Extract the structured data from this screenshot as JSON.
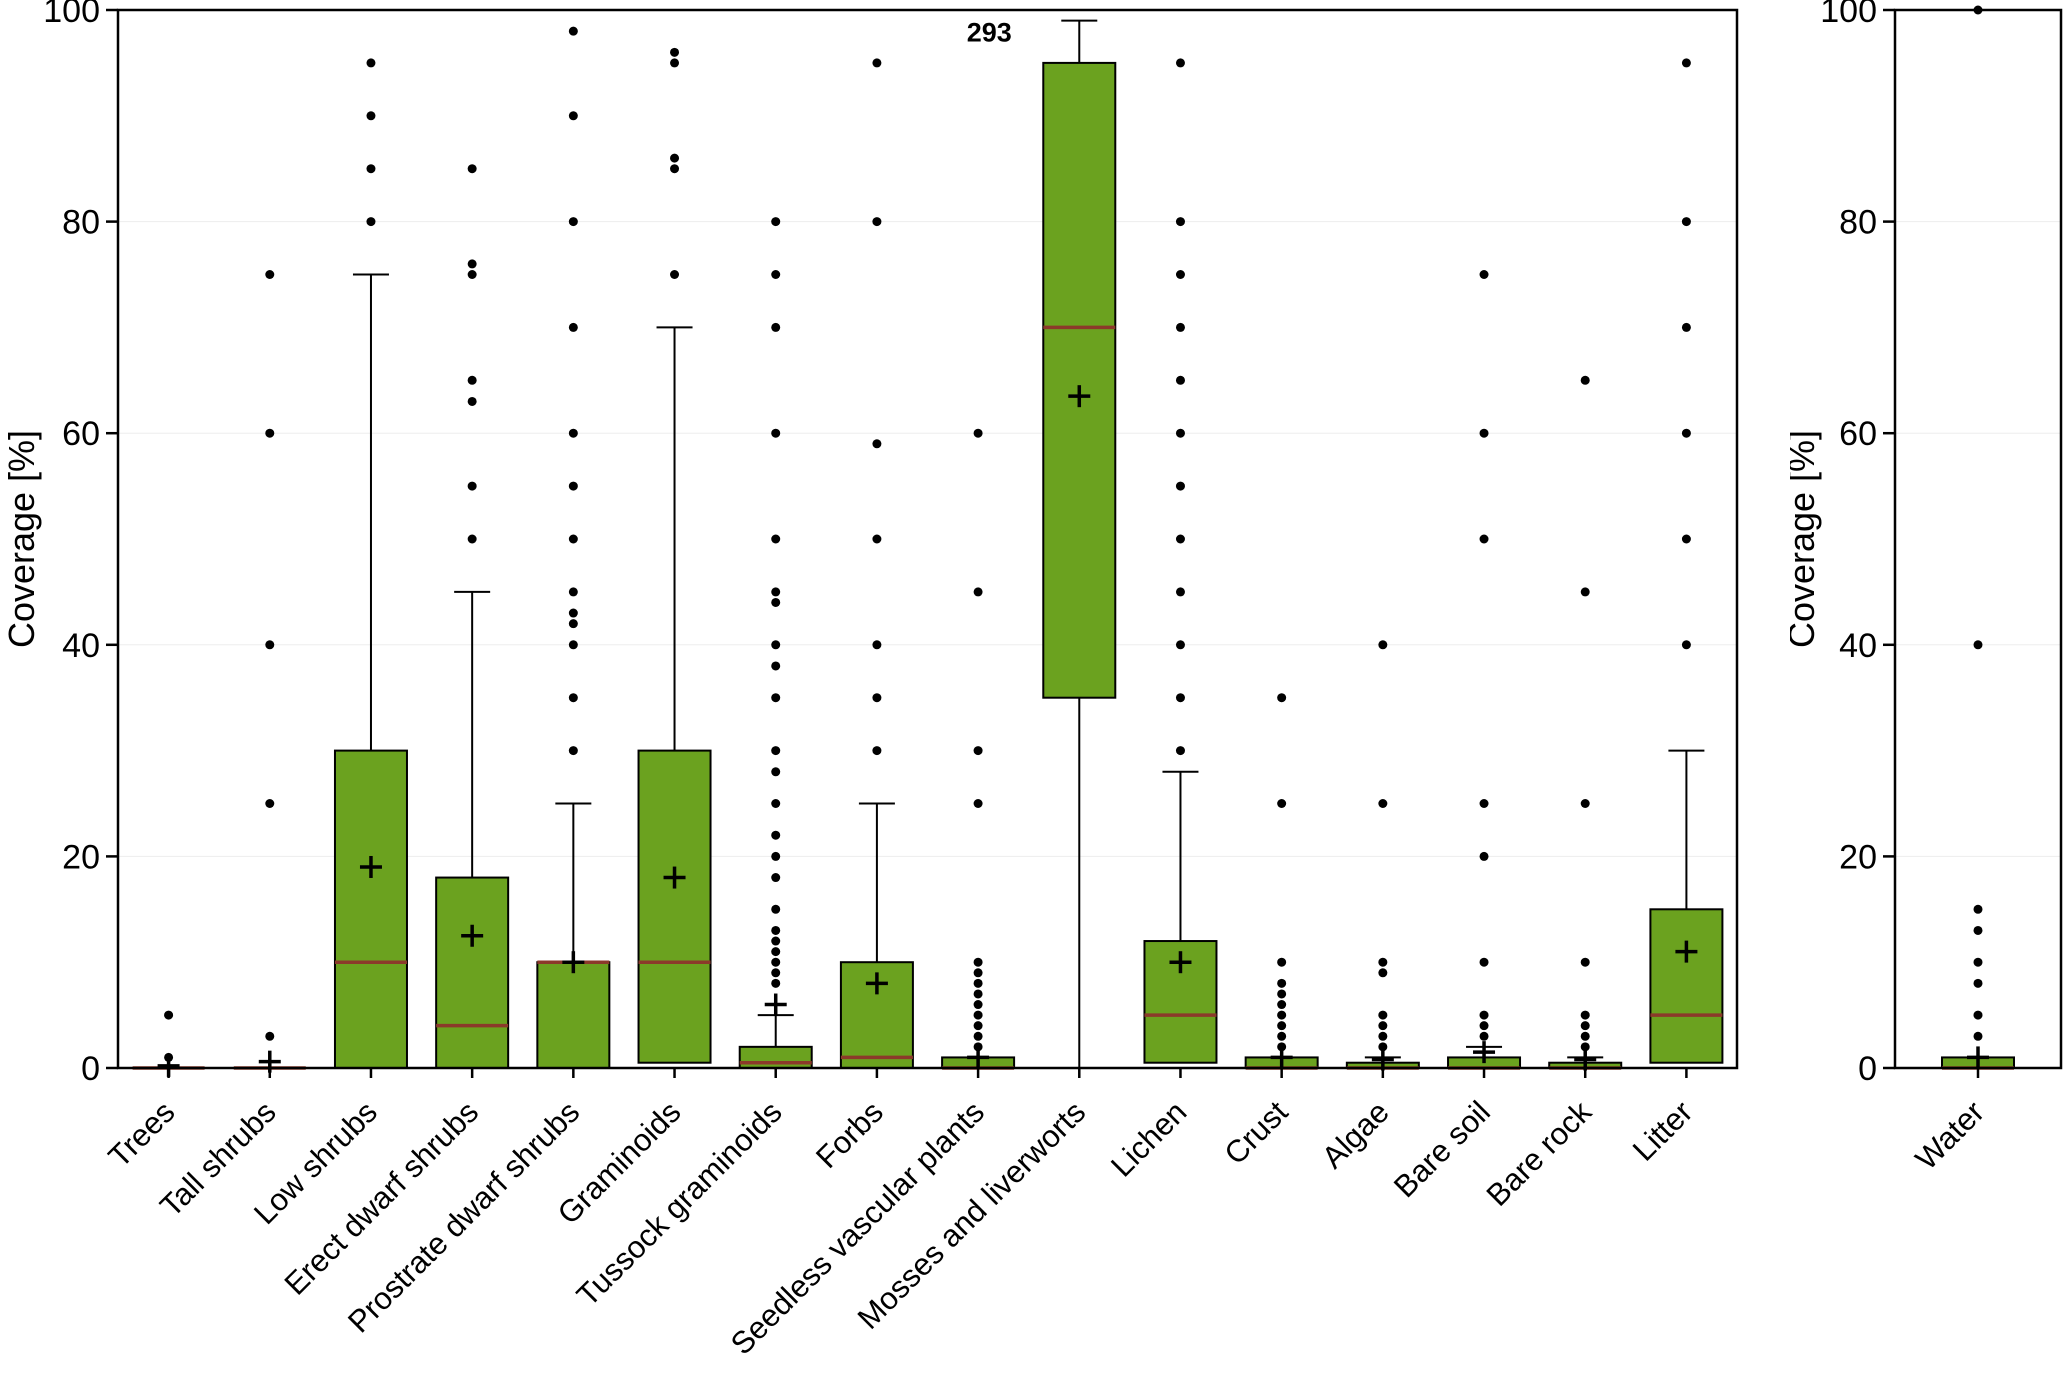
{
  "styles": {
    "background": "#ffffff",
    "box_fill": "#6ba21f",
    "box_stroke": "#000000",
    "median_color": "#8b3a2a",
    "whisker_color": "#000000",
    "outlier_color": "#000000",
    "grid_color": "#ededed",
    "mean_marker": "plus"
  },
  "chart_data": [
    {
      "type": "boxplot",
      "panel": "left",
      "title": "",
      "xlabel": "",
      "ylabel": "Coverage [%]",
      "ylim": [
        0,
        100
      ],
      "yticks": [
        0,
        20,
        40,
        60,
        80,
        100
      ],
      "grid": false,
      "annotation": {
        "text": "293",
        "category": "Mosses and liverworts",
        "y": 97
      },
      "series": [
        {
          "category": "Trees",
          "q1": 0,
          "median": 0,
          "q3": 0,
          "whisker_low": 0,
          "whisker_high": 0,
          "mean": 0.2,
          "outliers": [
            1,
            5
          ]
        },
        {
          "category": "Tall shrubs",
          "q1": 0,
          "median": 0,
          "q3": 0,
          "whisker_low": 0,
          "whisker_high": 0,
          "mean": 0.6,
          "outliers": [
            3,
            25,
            40,
            60,
            75
          ]
        },
        {
          "category": "Low shrubs",
          "q1": 0,
          "median": 10,
          "q3": 30,
          "whisker_low": 0,
          "whisker_high": 75,
          "mean": 19,
          "outliers": [
            80,
            85,
            90,
            95
          ]
        },
        {
          "category": "Erect dwarf shrubs",
          "q1": 0,
          "median": 4,
          "q3": 18,
          "whisker_low": 0,
          "whisker_high": 45,
          "mean": 12.5,
          "outliers": [
            50,
            55,
            63,
            65,
            75,
            76,
            85
          ]
        },
        {
          "category": "Prostrate dwarf shrubs",
          "q1": 0,
          "median": 10,
          "q3": 10,
          "whisker_low": 0,
          "whisker_high": 25,
          "mean": 10,
          "outliers": [
            30,
            35,
            40,
            42,
            43,
            45,
            50,
            55,
            60,
            70,
            80,
            90,
            98
          ]
        },
        {
          "category": "Graminoids",
          "q1": 0.5,
          "median": 10,
          "q3": 30,
          "whisker_low": 0.5,
          "whisker_high": 70,
          "mean": 18,
          "outliers": [
            75,
            85,
            86,
            95,
            96
          ]
        },
        {
          "category": "Tussock graminoids",
          "q1": 0,
          "median": 0.5,
          "q3": 2,
          "whisker_low": 0,
          "whisker_high": 5,
          "mean": 6,
          "outliers": [
            8,
            9,
            10,
            11,
            12,
            13,
            15,
            18,
            20,
            22,
            25,
            28,
            30,
            35,
            38,
            40,
            44,
            45,
            50,
            60,
            70,
            75,
            80
          ]
        },
        {
          "category": "Forbs",
          "q1": 0,
          "median": 1,
          "q3": 10,
          "whisker_low": 0,
          "whisker_high": 25,
          "mean": 8,
          "outliers": [
            30,
            35,
            40,
            50,
            59,
            80,
            95
          ]
        },
        {
          "category": "Seedless vascular plants",
          "q1": 0,
          "median": 0,
          "q3": 1,
          "whisker_low": 0,
          "whisker_high": 1,
          "mean": 1,
          "outliers": [
            2,
            3,
            4,
            5,
            6,
            7,
            8,
            9,
            10,
            25,
            30,
            45,
            60
          ]
        },
        {
          "category": "Mosses and liverworts",
          "q1": 35,
          "median": 70,
          "q3": 95,
          "whisker_low": 0,
          "whisker_high": 99,
          "mean": 63.5,
          "outliers": []
        },
        {
          "category": "Lichen",
          "q1": 0.5,
          "median": 5,
          "q3": 12,
          "whisker_low": 0.5,
          "whisker_high": 28,
          "mean": 10,
          "outliers": [
            30,
            35,
            40,
            45,
            50,
            55,
            60,
            65,
            70,
            75,
            80,
            95
          ]
        },
        {
          "category": "Crust",
          "q1": 0,
          "median": 0,
          "q3": 1,
          "whisker_low": 0,
          "whisker_high": 1,
          "mean": 1,
          "outliers": [
            2,
            3,
            4,
            5,
            6,
            7,
            8,
            10,
            25,
            35
          ]
        },
        {
          "category": "Algae",
          "q1": 0,
          "median": 0,
          "q3": 0.5,
          "whisker_low": 0,
          "whisker_high": 1,
          "mean": 0.8,
          "outliers": [
            2,
            3,
            4,
            5,
            9,
            10,
            25,
            40
          ]
        },
        {
          "category": "Bare soil",
          "q1": 0,
          "median": 0,
          "q3": 1,
          "whisker_low": 0,
          "whisker_high": 2,
          "mean": 1.5,
          "outliers": [
            3,
            4,
            5,
            10,
            20,
            25,
            50,
            60,
            75
          ]
        },
        {
          "category": "Bare rock",
          "q1": 0,
          "median": 0,
          "q3": 0.5,
          "whisker_low": 0,
          "whisker_high": 1,
          "mean": 0.8,
          "outliers": [
            2,
            3,
            4,
            5,
            10,
            25,
            45,
            65
          ]
        },
        {
          "category": "Litter",
          "q1": 0.5,
          "median": 5,
          "q3": 15,
          "whisker_low": 0.5,
          "whisker_high": 30,
          "mean": 11,
          "outliers": [
            40,
            50,
            60,
            70,
            80,
            95
          ]
        }
      ]
    },
    {
      "type": "boxplot",
      "panel": "right",
      "title": "",
      "xlabel": "",
      "ylabel": "Coverage [%]",
      "ylim": [
        0,
        100
      ],
      "yticks": [
        0,
        20,
        40,
        60,
        80,
        100
      ],
      "grid": false,
      "series": [
        {
          "category": "Water",
          "q1": 0,
          "median": 0,
          "q3": 1,
          "whisker_low": 0,
          "whisker_high": 1,
          "mean": 1,
          "outliers": [
            3,
            5,
            8,
            10,
            13,
            15,
            40,
            100
          ]
        }
      ]
    }
  ]
}
